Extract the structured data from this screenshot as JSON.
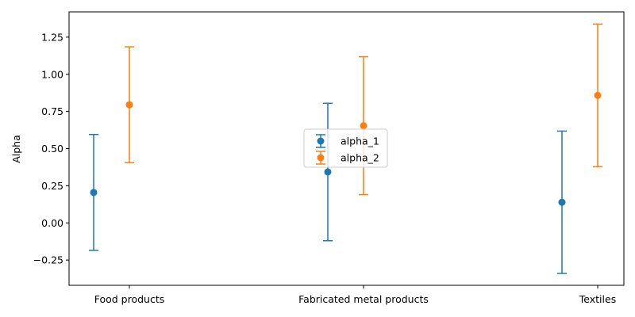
{
  "chart_data": {
    "type": "scatter",
    "title": "",
    "xlabel": "",
    "ylabel": "Alpha",
    "categories": [
      "Food products",
      "Fabricated metal products",
      "Textiles"
    ],
    "ylim": [
      -0.42,
      1.42
    ],
    "yticks": [
      "−0.25",
      "0.00",
      "0.25",
      "0.50",
      "0.75",
      "1.00",
      "1.25"
    ],
    "ytick_values": [
      -0.25,
      0,
      0.25,
      0.5,
      0.75,
      1.0,
      1.25
    ],
    "grid": false,
    "legend_position": "center",
    "series": [
      {
        "name": "alpha_1",
        "color": "#1f77b4",
        "values": [
          0.205,
          0.343,
          0.139
        ],
        "lower": [
          -0.185,
          -0.12,
          -0.34
        ],
        "upper": [
          0.595,
          0.805,
          0.618
        ]
      },
      {
        "name": "alpha_2",
        "color": "#ff7f0e",
        "values": [
          0.795,
          0.654,
          0.858
        ],
        "lower": [
          0.405,
          0.19,
          0.378
        ],
        "upper": [
          1.185,
          1.118,
          1.338
        ]
      }
    ]
  }
}
